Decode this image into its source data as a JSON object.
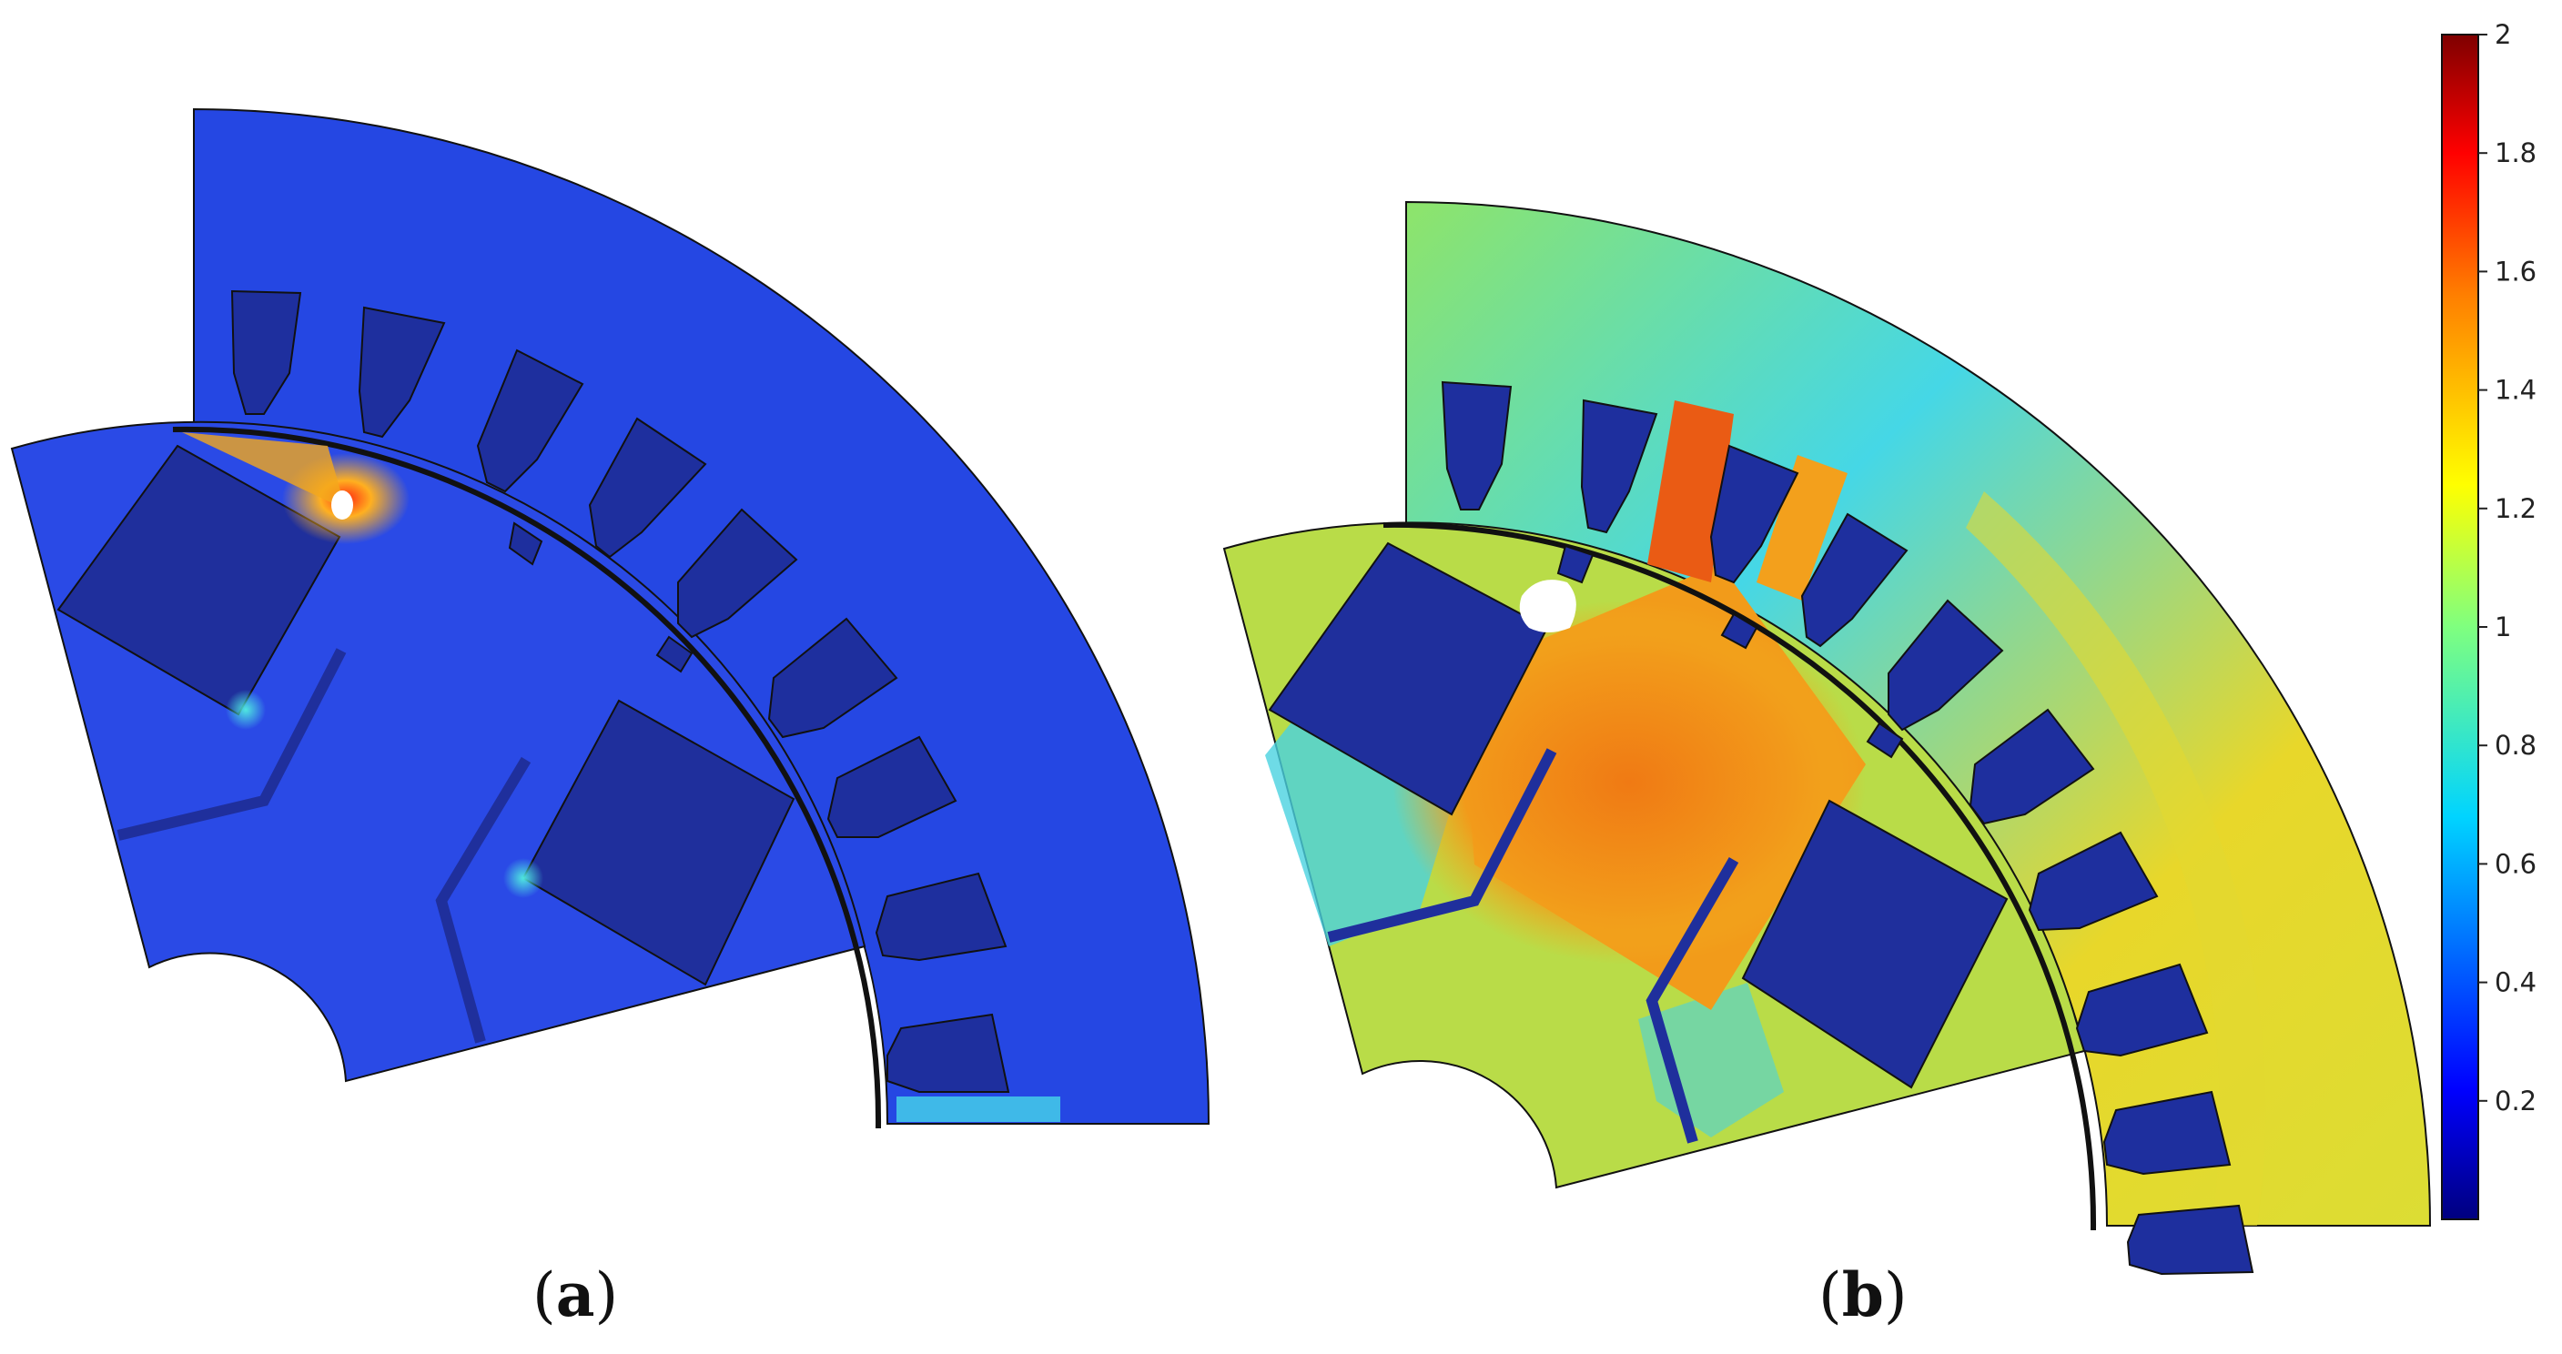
{
  "panels": [
    {
      "id": "a",
      "label": "a"
    },
    {
      "id": "b",
      "label": "b"
    }
  ],
  "colorbar": {
    "min": 0,
    "max": 2,
    "ticks": [
      "2",
      "1.8",
      "1.6",
      "1.4",
      "1.2",
      "1",
      "0.8",
      "0.6",
      "0.4",
      "0.2"
    ],
    "colormap": [
      "#00007f",
      "#0000ff",
      "#007fff",
      "#00ffff",
      "#7fff7f",
      "#ffff00",
      "#ff7f00",
      "#ff0000",
      "#7f0000"
    ]
  },
  "colors": {
    "a_background": "#2447e0",
    "a_slots": "#1d2d96",
    "b_background": "#c8e03a",
    "b_slots": "#1d2d96",
    "hot": "#e8731a",
    "warm": "#f0a81c",
    "cyan": "#38d0d8"
  }
}
